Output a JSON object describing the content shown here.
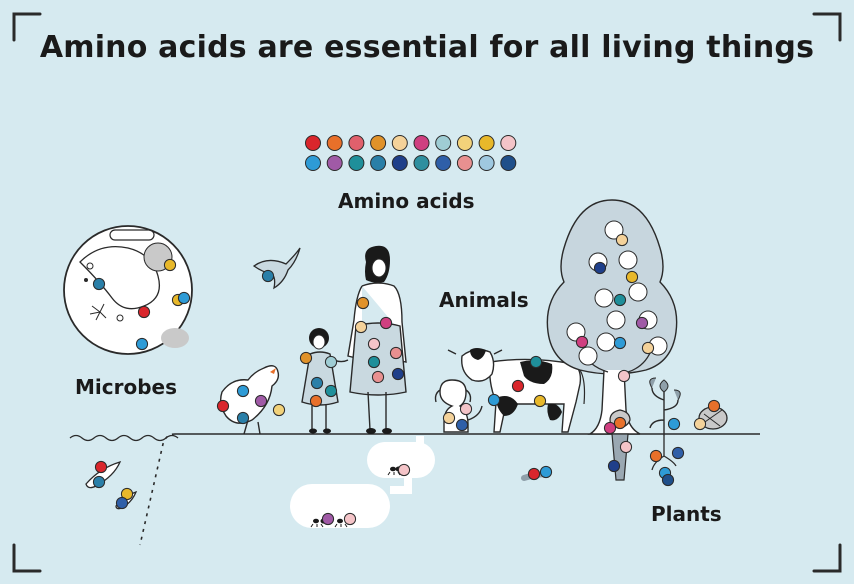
{
  "title": "Amino acids are essential for all living things",
  "labels": {
    "amino_acids": "Amino acids",
    "animals": "Animals",
    "microbes": "Microbes",
    "plants": "Plants"
  },
  "amino_acid_colors": {
    "row1": [
      "#d9262c",
      "#e8702a",
      "#e0606c",
      "#e0922a",
      "#f4d29a",
      "#cf3f80",
      "#9fcdd4",
      "#f2d27a",
      "#e8b82a",
      "#f4c4c8"
    ],
    "row2": [
      "#2e9bd6",
      "#a05aa6",
      "#1f8f9a",
      "#2a7fa8",
      "#1f3f8a",
      "#2f8f9f",
      "#2f5fa8",
      "#e89090",
      "#9fc8e0",
      "#1f4f8a"
    ]
  },
  "icons": {
    "bird": "bird-icon",
    "hen": "hen-icon",
    "woman": "woman-icon",
    "girl": "girl-icon",
    "dog": "dog-icon",
    "cow": "cow-icon",
    "tree": "tree-icon",
    "fish": "fish-icon",
    "ant": "ant-icon",
    "worm": "worm-icon",
    "microbe_circle": "microbe-magnifier-icon"
  }
}
